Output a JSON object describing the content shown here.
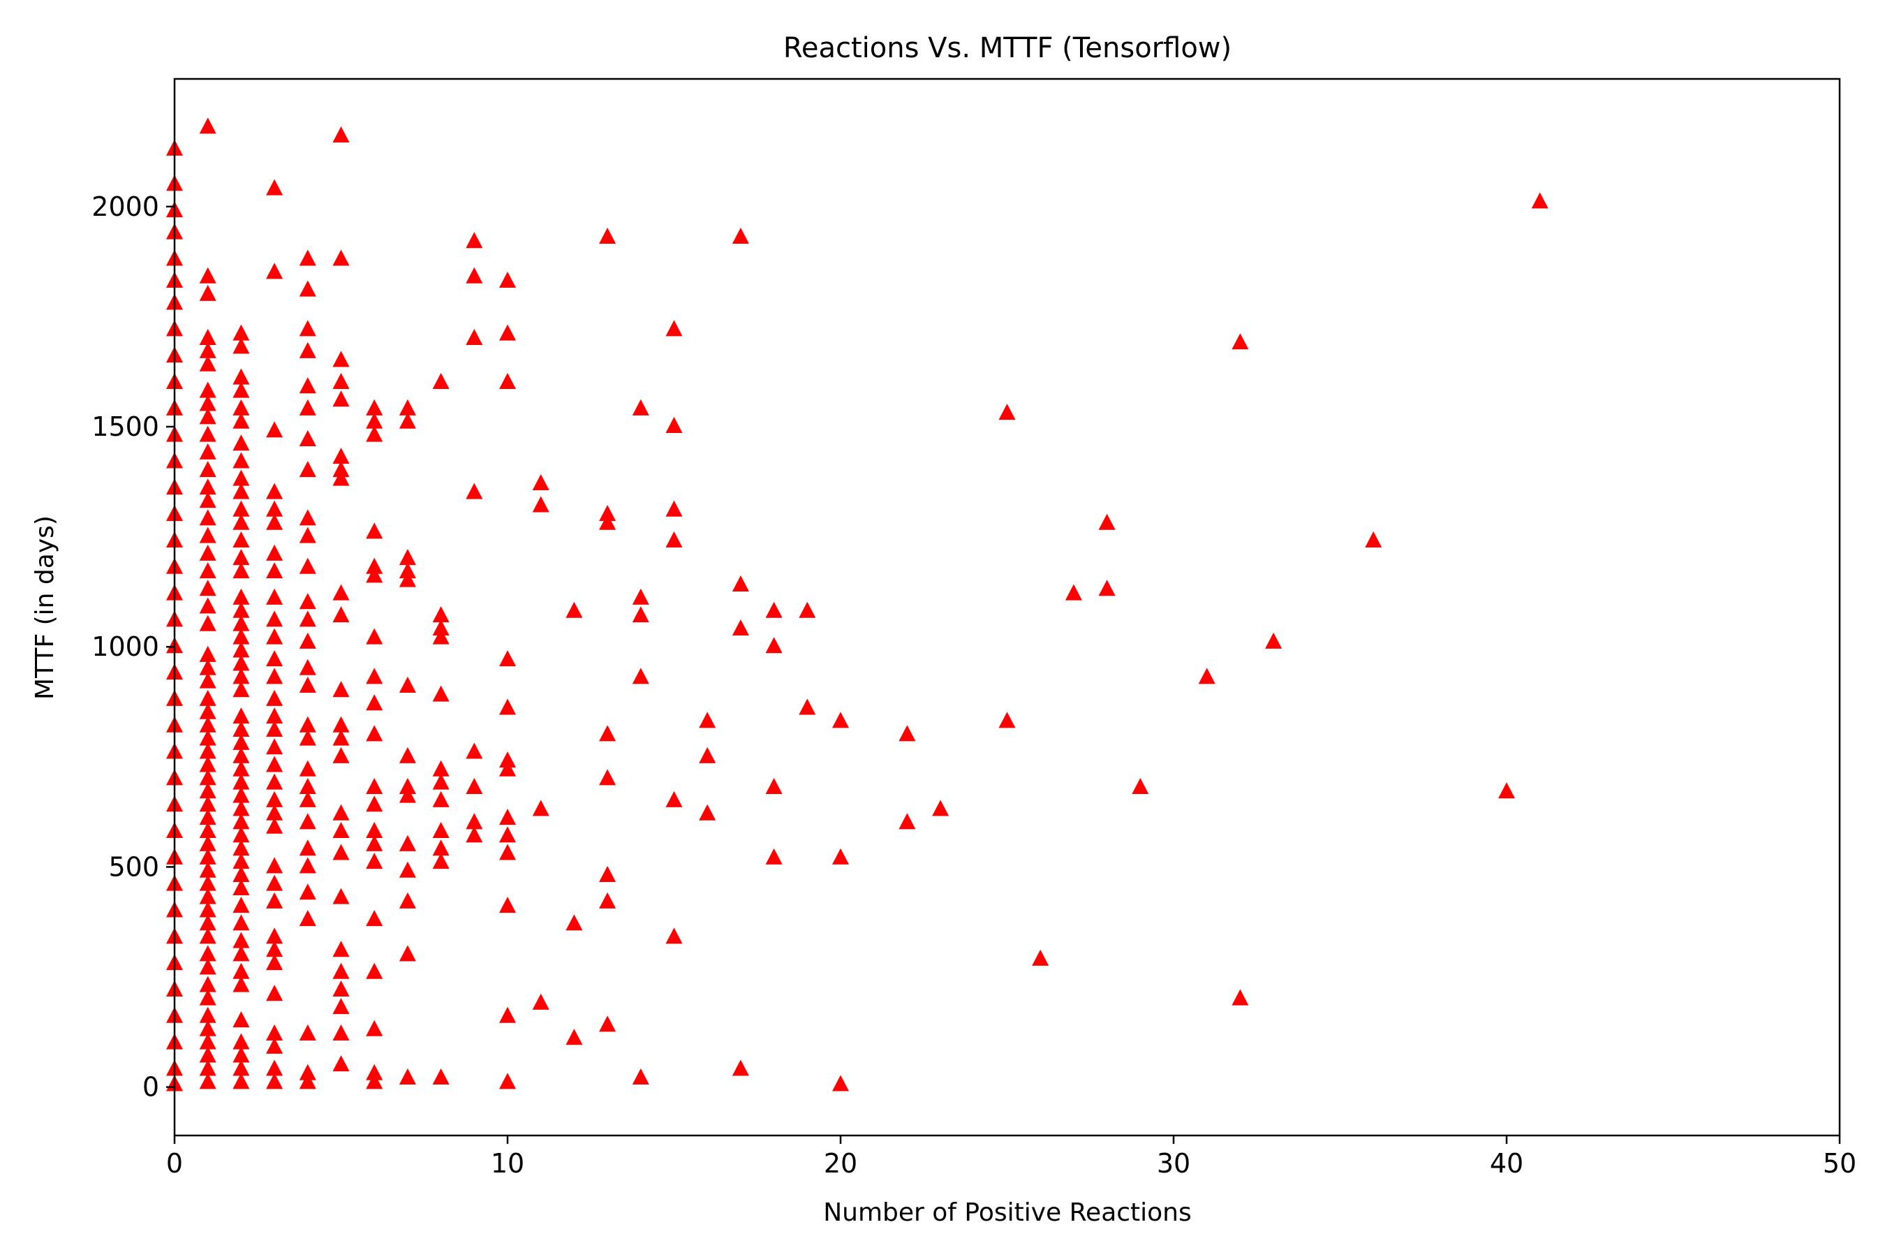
{
  "chart_data": {
    "type": "scatter",
    "title": "Reactions Vs. MTTF (Tensorflow)",
    "xlabel": "Number of Positive Reactions",
    "ylabel": "MTTF (in days)",
    "xlim": [
      0,
      50
    ],
    "ylim": [
      -110,
      2290
    ],
    "xticks": [
      0,
      10,
      20,
      30,
      40,
      50
    ],
    "yticks": [
      0,
      500,
      1000,
      1500,
      2000
    ],
    "xtick_labels": [
      "0",
      "10",
      "20",
      "30",
      "40",
      "50"
    ],
    "ytick_labels": [
      "0",
      "500",
      "1000",
      "1500",
      "2000"
    ],
    "grid": false,
    "legend": "none",
    "marker": "triangle-up",
    "marker_color": "#ff0000",
    "points": [
      [
        0,
        2130
      ],
      [
        0,
        2050
      ],
      [
        0,
        1990
      ],
      [
        0,
        1940
      ],
      [
        0,
        1880
      ],
      [
        0,
        1830
      ],
      [
        0,
        1780
      ],
      [
        0,
        1720
      ],
      [
        0,
        1660
      ],
      [
        0,
        1600
      ],
      [
        0,
        1540
      ],
      [
        0,
        1480
      ],
      [
        0,
        1420
      ],
      [
        0,
        1360
      ],
      [
        0,
        1300
      ],
      [
        0,
        1240
      ],
      [
        0,
        1180
      ],
      [
        0,
        1120
      ],
      [
        0,
        1060
      ],
      [
        0,
        1000
      ],
      [
        0,
        940
      ],
      [
        0,
        880
      ],
      [
        0,
        820
      ],
      [
        0,
        760
      ],
      [
        0,
        700
      ],
      [
        0,
        640
      ],
      [
        0,
        580
      ],
      [
        0,
        520
      ],
      [
        0,
        460
      ],
      [
        0,
        400
      ],
      [
        0,
        340
      ],
      [
        0,
        280
      ],
      [
        0,
        220
      ],
      [
        0,
        160
      ],
      [
        0,
        100
      ],
      [
        0,
        40
      ],
      [
        0,
        5
      ],
      [
        1,
        2180
      ],
      [
        1,
        1840
      ],
      [
        1,
        1800
      ],
      [
        1,
        1700
      ],
      [
        1,
        1670
      ],
      [
        1,
        1640
      ],
      [
        1,
        1580
      ],
      [
        1,
        1550
      ],
      [
        1,
        1520
      ],
      [
        1,
        1480
      ],
      [
        1,
        1440
      ],
      [
        1,
        1400
      ],
      [
        1,
        1360
      ],
      [
        1,
        1330
      ],
      [
        1,
        1290
      ],
      [
        1,
        1250
      ],
      [
        1,
        1210
      ],
      [
        1,
        1170
      ],
      [
        1,
        1130
      ],
      [
        1,
        1090
      ],
      [
        1,
        1050
      ],
      [
        1,
        980
      ],
      [
        1,
        950
      ],
      [
        1,
        920
      ],
      [
        1,
        880
      ],
      [
        1,
        850
      ],
      [
        1,
        820
      ],
      [
        1,
        790
      ],
      [
        1,
        760
      ],
      [
        1,
        730
      ],
      [
        1,
        700
      ],
      [
        1,
        670
      ],
      [
        1,
        640
      ],
      [
        1,
        610
      ],
      [
        1,
        580
      ],
      [
        1,
        550
      ],
      [
        1,
        520
      ],
      [
        1,
        490
      ],
      [
        1,
        460
      ],
      [
        1,
        430
      ],
      [
        1,
        400
      ],
      [
        1,
        370
      ],
      [
        1,
        340
      ],
      [
        1,
        300
      ],
      [
        1,
        270
      ],
      [
        1,
        230
      ],
      [
        1,
        200
      ],
      [
        1,
        160
      ],
      [
        1,
        130
      ],
      [
        1,
        100
      ],
      [
        1,
        70
      ],
      [
        1,
        40
      ],
      [
        1,
        10
      ],
      [
        2,
        1710
      ],
      [
        2,
        1680
      ],
      [
        2,
        1610
      ],
      [
        2,
        1580
      ],
      [
        2,
        1540
      ],
      [
        2,
        1510
      ],
      [
        2,
        1460
      ],
      [
        2,
        1420
      ],
      [
        2,
        1380
      ],
      [
        2,
        1350
      ],
      [
        2,
        1310
      ],
      [
        2,
        1280
      ],
      [
        2,
        1240
      ],
      [
        2,
        1200
      ],
      [
        2,
        1170
      ],
      [
        2,
        1110
      ],
      [
        2,
        1080
      ],
      [
        2,
        1050
      ],
      [
        2,
        1020
      ],
      [
        2,
        990
      ],
      [
        2,
        960
      ],
      [
        2,
        930
      ],
      [
        2,
        900
      ],
      [
        2,
        840
      ],
      [
        2,
        810
      ],
      [
        2,
        780
      ],
      [
        2,
        750
      ],
      [
        2,
        720
      ],
      [
        2,
        690
      ],
      [
        2,
        660
      ],
      [
        2,
        630
      ],
      [
        2,
        600
      ],
      [
        2,
        570
      ],
      [
        2,
        540
      ],
      [
        2,
        510
      ],
      [
        2,
        480
      ],
      [
        2,
        450
      ],
      [
        2,
        410
      ],
      [
        2,
        370
      ],
      [
        2,
        330
      ],
      [
        2,
        300
      ],
      [
        2,
        260
      ],
      [
        2,
        230
      ],
      [
        2,
        150
      ],
      [
        2,
        100
      ],
      [
        2,
        70
      ],
      [
        2,
        40
      ],
      [
        2,
        10
      ],
      [
        3,
        2040
      ],
      [
        3,
        1850
      ],
      [
        3,
        1490
      ],
      [
        3,
        1350
      ],
      [
        3,
        1310
      ],
      [
        3,
        1280
      ],
      [
        3,
        1210
      ],
      [
        3,
        1170
      ],
      [
        3,
        1110
      ],
      [
        3,
        1060
      ],
      [
        3,
        1020
      ],
      [
        3,
        970
      ],
      [
        3,
        930
      ],
      [
        3,
        880
      ],
      [
        3,
        840
      ],
      [
        3,
        810
      ],
      [
        3,
        770
      ],
      [
        3,
        730
      ],
      [
        3,
        690
      ],
      [
        3,
        650
      ],
      [
        3,
        620
      ],
      [
        3,
        590
      ],
      [
        3,
        500
      ],
      [
        3,
        460
      ],
      [
        3,
        420
      ],
      [
        3,
        340
      ],
      [
        3,
        310
      ],
      [
        3,
        280
      ],
      [
        3,
        210
      ],
      [
        3,
        120
      ],
      [
        3,
        90
      ],
      [
        3,
        40
      ],
      [
        3,
        10
      ],
      [
        4,
        1880
      ],
      [
        4,
        1810
      ],
      [
        4,
        1720
      ],
      [
        4,
        1670
      ],
      [
        4,
        1590
      ],
      [
        4,
        1540
      ],
      [
        4,
        1470
      ],
      [
        4,
        1400
      ],
      [
        4,
        1290
      ],
      [
        4,
        1250
      ],
      [
        4,
        1180
      ],
      [
        4,
        1100
      ],
      [
        4,
        1060
      ],
      [
        4,
        1010
      ],
      [
        4,
        950
      ],
      [
        4,
        910
      ],
      [
        4,
        820
      ],
      [
        4,
        790
      ],
      [
        4,
        720
      ],
      [
        4,
        680
      ],
      [
        4,
        650
      ],
      [
        4,
        600
      ],
      [
        4,
        540
      ],
      [
        4,
        500
      ],
      [
        4,
        440
      ],
      [
        4,
        380
      ],
      [
        4,
        120
      ],
      [
        4,
        30
      ],
      [
        4,
        10
      ],
      [
        5,
        2160
      ],
      [
        5,
        1880
      ],
      [
        5,
        1650
      ],
      [
        5,
        1600
      ],
      [
        5,
        1560
      ],
      [
        5,
        1430
      ],
      [
        5,
        1400
      ],
      [
        5,
        1380
      ],
      [
        5,
        1120
      ],
      [
        5,
        1070
      ],
      [
        5,
        900
      ],
      [
        5,
        820
      ],
      [
        5,
        790
      ],
      [
        5,
        750
      ],
      [
        5,
        620
      ],
      [
        5,
        580
      ],
      [
        5,
        530
      ],
      [
        5,
        430
      ],
      [
        5,
        310
      ],
      [
        5,
        260
      ],
      [
        5,
        220
      ],
      [
        5,
        180
      ],
      [
        5,
        120
      ],
      [
        5,
        50
      ],
      [
        6,
        1540
      ],
      [
        6,
        1510
      ],
      [
        6,
        1480
      ],
      [
        6,
        1260
      ],
      [
        6,
        1180
      ],
      [
        6,
        1160
      ],
      [
        6,
        1020
      ],
      [
        6,
        930
      ],
      [
        6,
        870
      ],
      [
        6,
        800
      ],
      [
        6,
        680
      ],
      [
        6,
        640
      ],
      [
        6,
        580
      ],
      [
        6,
        550
      ],
      [
        6,
        510
      ],
      [
        6,
        380
      ],
      [
        6,
        260
      ],
      [
        6,
        130
      ],
      [
        6,
        30
      ],
      [
        6,
        10
      ],
      [
        7,
        1540
      ],
      [
        7,
        1510
      ],
      [
        7,
        1200
      ],
      [
        7,
        1170
      ],
      [
        7,
        1150
      ],
      [
        7,
        910
      ],
      [
        7,
        750
      ],
      [
        7,
        680
      ],
      [
        7,
        660
      ],
      [
        7,
        550
      ],
      [
        7,
        490
      ],
      [
        7,
        420
      ],
      [
        7,
        300
      ],
      [
        7,
        20
      ],
      [
        8,
        1600
      ],
      [
        8,
        1070
      ],
      [
        8,
        1040
      ],
      [
        8,
        1020
      ],
      [
        8,
        890
      ],
      [
        8,
        720
      ],
      [
        8,
        690
      ],
      [
        8,
        650
      ],
      [
        8,
        580
      ],
      [
        8,
        540
      ],
      [
        8,
        510
      ],
      [
        8,
        20
      ],
      [
        9,
        1920
      ],
      [
        9,
        1840
      ],
      [
        9,
        1700
      ],
      [
        9,
        1350
      ],
      [
        9,
        760
      ],
      [
        9,
        680
      ],
      [
        9,
        600
      ],
      [
        9,
        570
      ],
      [
        10,
        1830
      ],
      [
        10,
        1710
      ],
      [
        10,
        1600
      ],
      [
        10,
        970
      ],
      [
        10,
        860
      ],
      [
        10,
        740
      ],
      [
        10,
        720
      ],
      [
        10,
        610
      ],
      [
        10,
        570
      ],
      [
        10,
        530
      ],
      [
        10,
        410
      ],
      [
        10,
        160
      ],
      [
        10,
        10
      ],
      [
        11,
        1370
      ],
      [
        11,
        1320
      ],
      [
        11,
        630
      ],
      [
        11,
        190
      ],
      [
        12,
        1080
      ],
      [
        12,
        370
      ],
      [
        12,
        110
      ],
      [
        13,
        1930
      ],
      [
        13,
        1300
      ],
      [
        13,
        1280
      ],
      [
        13,
        800
      ],
      [
        13,
        700
      ],
      [
        13,
        480
      ],
      [
        13,
        420
      ],
      [
        13,
        140
      ],
      [
        14,
        1540
      ],
      [
        14,
        1110
      ],
      [
        14,
        1070
      ],
      [
        14,
        930
      ],
      [
        14,
        20
      ],
      [
        15,
        1720
      ],
      [
        15,
        1500
      ],
      [
        15,
        1310
      ],
      [
        15,
        1240
      ],
      [
        15,
        650
      ],
      [
        15,
        340
      ],
      [
        16,
        830
      ],
      [
        16,
        750
      ],
      [
        16,
        620
      ],
      [
        17,
        1930
      ],
      [
        17,
        1140
      ],
      [
        17,
        1040
      ],
      [
        17,
        40
      ],
      [
        18,
        1080
      ],
      [
        18,
        1000
      ],
      [
        18,
        680
      ],
      [
        18,
        520
      ],
      [
        19,
        1080
      ],
      [
        19,
        860
      ],
      [
        20,
        830
      ],
      [
        20,
        520
      ],
      [
        20,
        5
      ],
      [
        22,
        800
      ],
      [
        22,
        600
      ],
      [
        23,
        630
      ],
      [
        25,
        1530
      ],
      [
        25,
        830
      ],
      [
        26,
        290
      ],
      [
        27,
        1120
      ],
      [
        28,
        1280
      ],
      [
        28,
        1130
      ],
      [
        29,
        680
      ],
      [
        31,
        930
      ],
      [
        32,
        1690
      ],
      [
        32,
        200
      ],
      [
        33,
        1010
      ],
      [
        36,
        1240
      ],
      [
        40,
        670
      ],
      [
        41,
        2010
      ]
    ]
  }
}
